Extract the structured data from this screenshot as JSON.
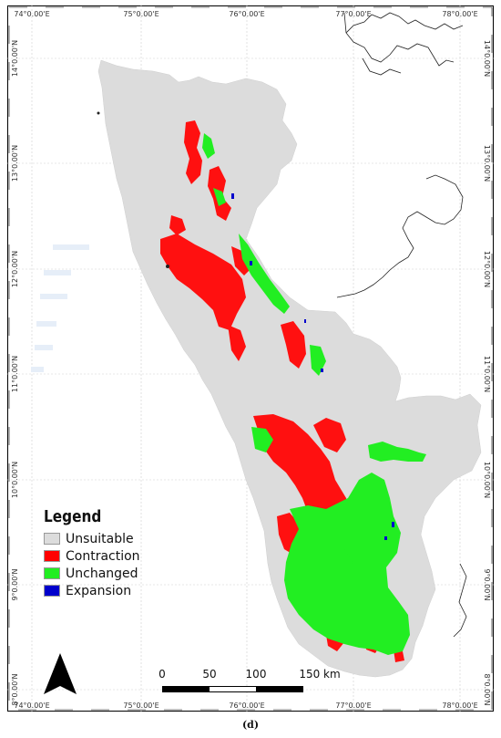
{
  "caption": "(d)",
  "grid": {
    "lon_labels": [
      "74°0.00'E",
      "75°0.00'E",
      "76°0.00'E",
      "77°0.00'E",
      "78°0.00'E"
    ],
    "lat_labels": [
      "14°0.00'N",
      "13°0.00'N",
      "12°0.00'N",
      "11°0.00'N",
      "10°0.00'N",
      "9°0.00'N",
      "8°0.00'N"
    ]
  },
  "legend": {
    "title": "Legend",
    "items": [
      {
        "label": "Unsuitable",
        "color": "#dcdcdc"
      },
      {
        "label": "Contraction",
        "color": "#ff0000"
      },
      {
        "label": "Unchanged",
        "color": "#22ee22"
      },
      {
        "label": "Expansion",
        "color": "#0000cc"
      }
    ]
  },
  "scalebar": {
    "ticks": [
      "0",
      "50",
      "100",
      "150 km"
    ]
  },
  "north_arrow": "north-arrow-icon"
}
